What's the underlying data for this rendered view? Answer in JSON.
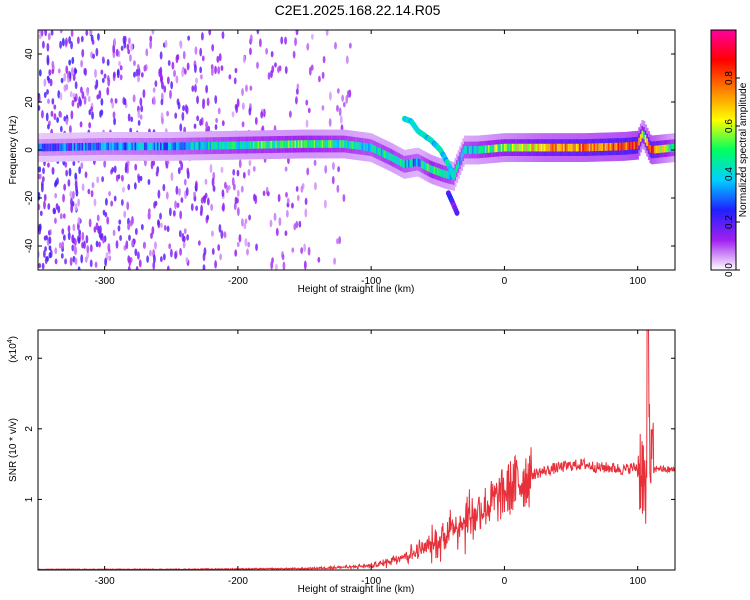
{
  "page": {
    "title": "C2E1.2025.168.22.14.R05"
  },
  "chart_data": [
    {
      "type": "heatmap",
      "xlabel": "Height of straight line (km)",
      "ylabel": "Frequency (Hz)",
      "xlim": [
        -350,
        128
      ],
      "ylim": [
        -50,
        50
      ],
      "x_ticks": [
        -300,
        -200,
        -100,
        0,
        100
      ],
      "y_ticks": [
        -40,
        -20,
        0,
        20,
        40
      ],
      "grid": false,
      "colorbar": {
        "label": "Normalized spectral amplitude",
        "range": [
          0,
          1
        ],
        "ticks": [
          0.0,
          0.2,
          0.4,
          0.6,
          0.8
        ],
        "colors": [
          "#ffffff",
          "#a020f0",
          "#2020ff",
          "#00d0ff",
          "#00ff60",
          "#ffff00",
          "#ff8000",
          "#ff0000",
          "#ff00a0"
        ]
      },
      "ridge": {
        "x": [
          -350,
          -300,
          -250,
          -200,
          -150,
          -120,
          -100,
          -85,
          -75,
          -65,
          -55,
          -45,
          -38,
          -30,
          -20,
          0,
          30,
          60,
          90,
          100,
          104,
          110,
          128
        ],
        "y": [
          1,
          1.5,
          1.5,
          2,
          2.5,
          2.5,
          1,
          -3,
          -6,
          -5,
          -8,
          -10,
          -11,
          0,
          0,
          1,
          1,
          1,
          1.5,
          2,
          7,
          0,
          1
        ],
        "amplitude": [
          0.25,
          0.3,
          0.35,
          0.45,
          0.5,
          0.45,
          0.4,
          0.45,
          0.4,
          0.35,
          0.5,
          0.45,
          0.4,
          0.4,
          0.45,
          0.55,
          0.7,
          0.75,
          0.8,
          0.85,
          0.5,
          0.8,
          0.4
        ]
      },
      "branches": [
        {
          "x": [
            -75,
            -70,
            -65,
            -55,
            -48,
            -42,
            -38
          ],
          "y": [
            13,
            12,
            8,
            4,
            0,
            -6,
            -11
          ],
          "amplitude": 0.4
        },
        {
          "x": [
            -42,
            -38,
            -35
          ],
          "y": [
            -18,
            -23,
            -27
          ],
          "amplitude": 0.2
        }
      ],
      "noise_region": {
        "x_range": [
          -350,
          -115
        ],
        "density": "decreasing",
        "amplitude_range": [
          0.05,
          0.25
        ]
      }
    },
    {
      "type": "line",
      "xlabel": "Height of straight line (km)",
      "ylabel": "SNR (10 * v/v)",
      "y_scale_label": "(x10",
      "y_scale_exponent": "4",
      "xlim": [
        -350,
        128
      ],
      "ylim": [
        0,
        3.4
      ],
      "x_ticks": [
        -300,
        -200,
        -100,
        0,
        100
      ],
      "y_ticks": [
        1,
        2,
        3
      ],
      "grid": false,
      "series": [
        {
          "color": "#e8303a",
          "x": [
            -350,
            -300,
            -250,
            -200,
            -150,
            -120,
            -100,
            -90,
            -80,
            -70,
            -60,
            -50,
            -45,
            -40,
            -35,
            -30,
            -25,
            -20,
            -15,
            -10,
            -5,
            0,
            10,
            20,
            30,
            40,
            50,
            60,
            70,
            80,
            90,
            95,
            100,
            103,
            105,
            107,
            108,
            110,
            112,
            115,
            120,
            128
          ],
          "y": [
            0.01,
            0.01,
            0.01,
            0.015,
            0.02,
            0.04,
            0.06,
            0.1,
            0.18,
            0.22,
            0.3,
            0.4,
            0.5,
            0.6,
            0.65,
            0.7,
            0.75,
            0.85,
            0.9,
            0.95,
            1.0,
            1.1,
            1.25,
            1.35,
            1.4,
            1.45,
            1.48,
            1.5,
            1.45,
            1.45,
            1.42,
            1.45,
            1.45,
            1.5,
            1.2,
            0.7,
            1.9,
            1.5,
            1.4,
            1.45,
            1.42,
            1.42
          ]
        }
      ]
    }
  ]
}
